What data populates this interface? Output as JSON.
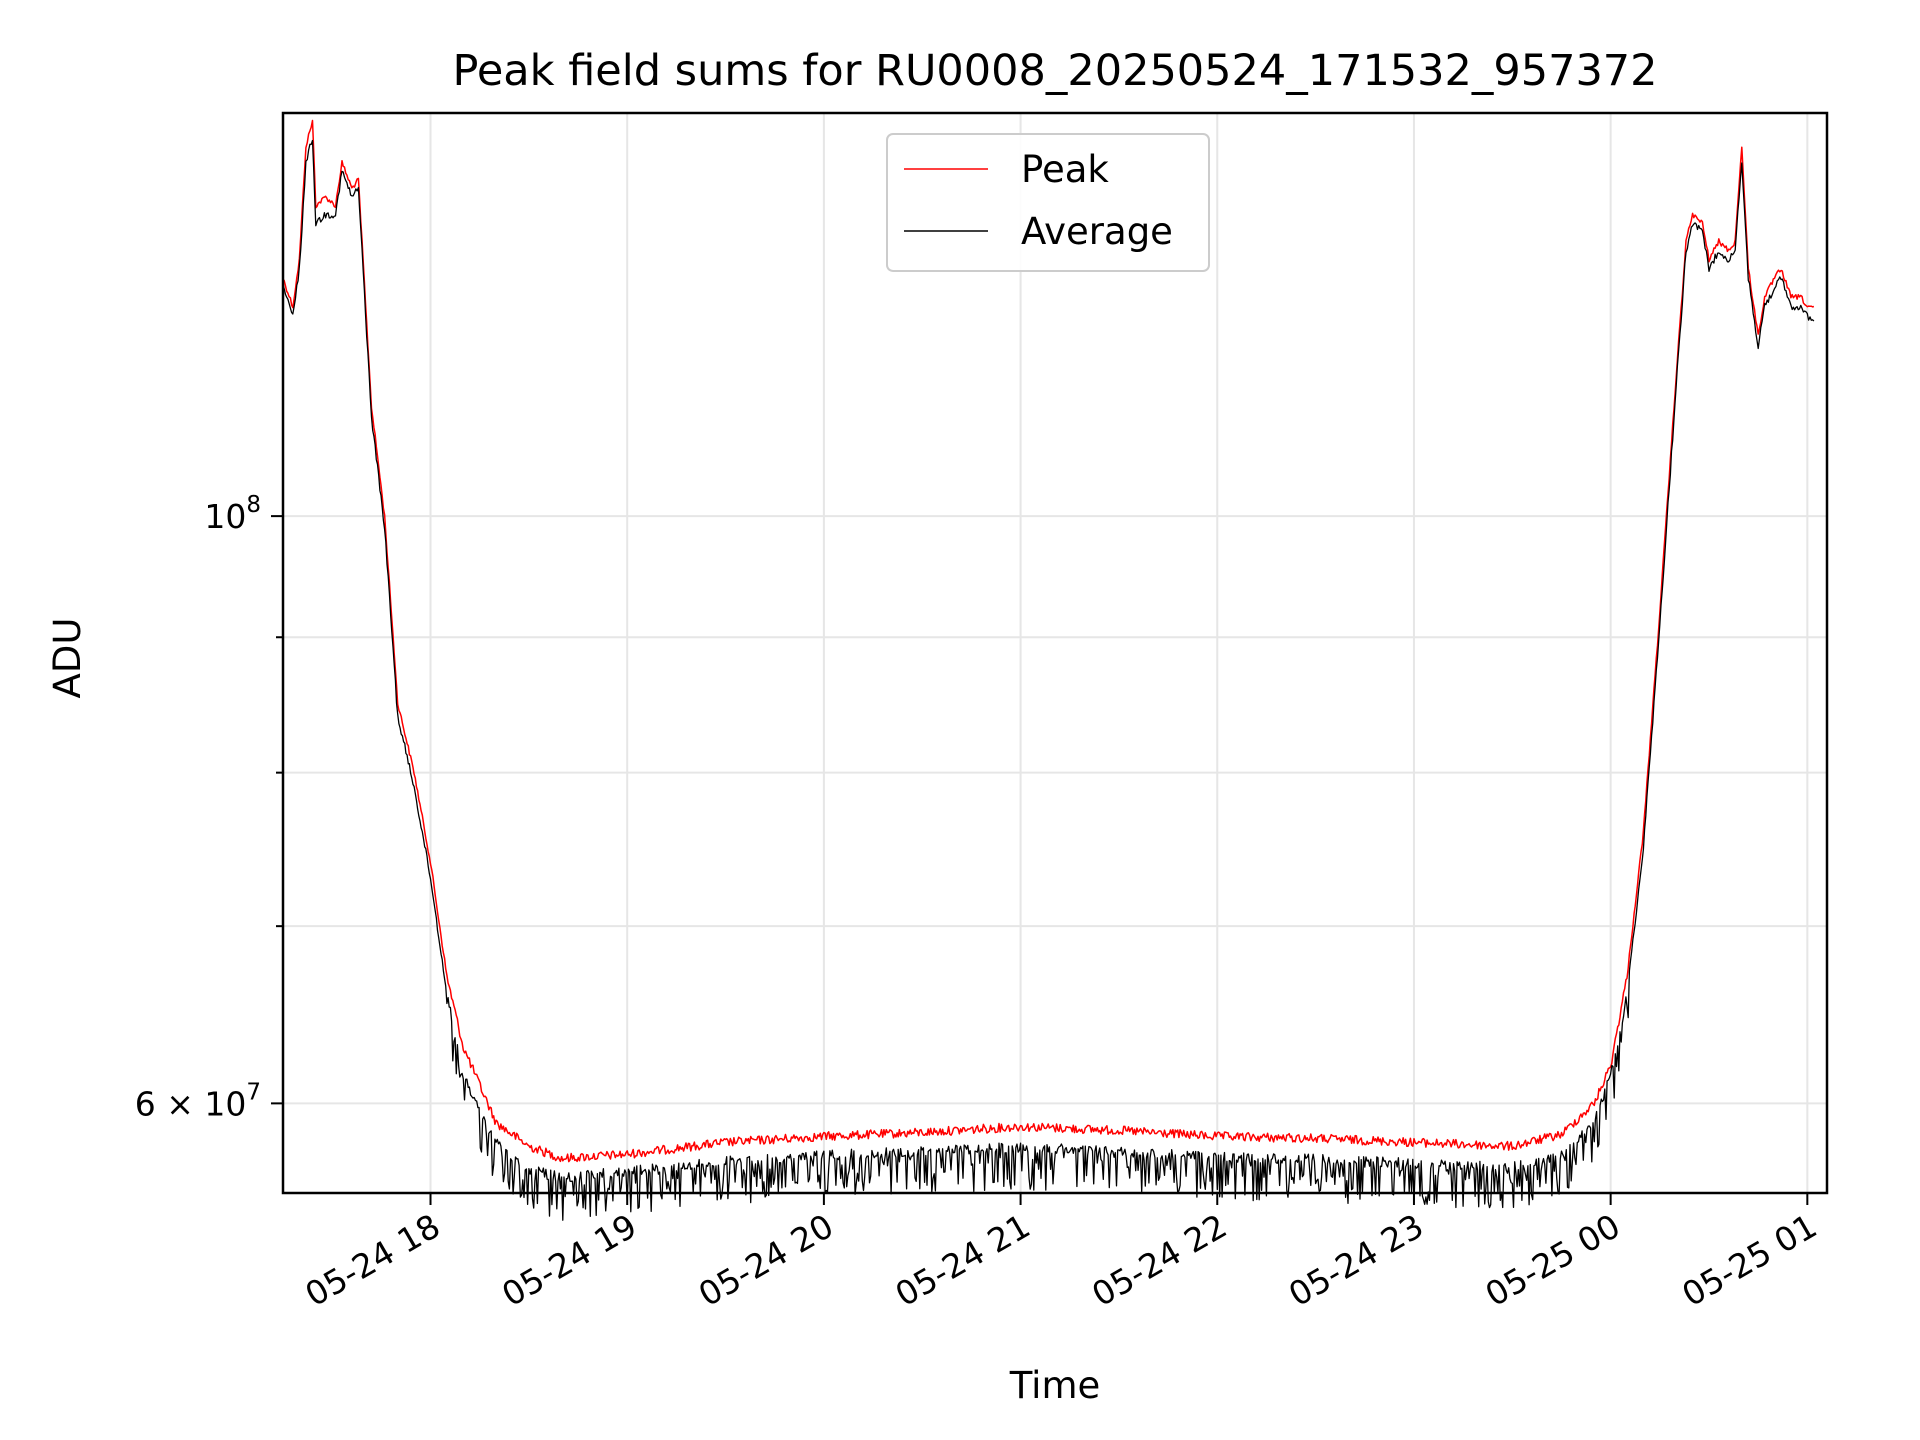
{
  "chart_data": {
    "type": "line",
    "title": "Peak field sums for RU0008_20250524_171532_957372",
    "xlabel": "Time",
    "ylabel": "ADU",
    "y_scale": "log",
    "ylim": [
      55500000,
      142000000
    ],
    "xlim": [
      "2025-05-24 17:15",
      "2025-05-25 01:06"
    ],
    "grid": true,
    "legend_position": "upper-center",
    "x_tick_labels": [
      {
        "t": "2025-05-24 18:00",
        "label": "05-24 18"
      },
      {
        "t": "2025-05-24 19:00",
        "label": "05-24 19"
      },
      {
        "t": "2025-05-24 20:00",
        "label": "05-24 20"
      },
      {
        "t": "2025-05-24 21:00",
        "label": "05-24 21"
      },
      {
        "t": "2025-05-24 22:00",
        "label": "05-24 22"
      },
      {
        "t": "2025-05-24 23:00",
        "label": "05-24 23"
      },
      {
        "t": "2025-05-25 00:00",
        "label": "05-25 00"
      },
      {
        "t": "2025-05-25 01:00",
        "label": "05-25 01"
      }
    ],
    "y_major_ticks": [
      {
        "v": 100000000,
        "base": "10",
        "exp": "8"
      },
      {
        "v": 60000000,
        "mantissa": "6 × 10",
        "exp": "7"
      }
    ],
    "y_minor_ticks": [
      70000000,
      80000000,
      90000000
    ],
    "series": [
      {
        "name": "Peak",
        "color": "#ff0000",
        "points": [
          [
            "2025-05-24 17:15",
            123000000
          ],
          [
            "2025-05-24 17:18",
            120000000
          ],
          [
            "2025-05-24 17:20",
            125000000
          ],
          [
            "2025-05-24 17:22",
            138000000
          ],
          [
            "2025-05-24 17:24",
            141000000
          ],
          [
            "2025-05-24 17:25",
            131000000
          ],
          [
            "2025-05-24 17:28",
            132000000
          ],
          [
            "2025-05-24 17:31",
            131000000
          ],
          [
            "2025-05-24 17:33",
            136000000
          ],
          [
            "2025-05-24 17:36",
            133000000
          ],
          [
            "2025-05-24 17:38",
            134000000
          ],
          [
            "2025-05-24 17:42",
            110000000
          ],
          [
            "2025-05-24 17:46",
            100000000
          ],
          [
            "2025-05-24 17:50",
            85000000
          ],
          [
            "2025-05-24 17:55",
            80000000
          ],
          [
            "2025-05-24 18:00",
            74000000
          ],
          [
            "2025-05-24 18:05",
            67000000
          ],
          [
            "2025-05-24 18:10",
            63000000
          ],
          [
            "2025-05-24 18:20",
            59000000
          ],
          [
            "2025-05-24 18:30",
            57800000
          ],
          [
            "2025-05-24 18:40",
            57200000
          ],
          [
            "2025-05-24 19:00",
            57400000
          ],
          [
            "2025-05-24 19:30",
            58000000
          ],
          [
            "2025-05-24 20:00",
            58300000
          ],
          [
            "2025-05-24 20:30",
            58500000
          ],
          [
            "2025-05-24 21:00",
            58800000
          ],
          [
            "2025-05-24 21:30",
            58600000
          ],
          [
            "2025-05-24 22:00",
            58300000
          ],
          [
            "2025-05-24 22:30",
            58200000
          ],
          [
            "2025-05-24 23:00",
            58000000
          ],
          [
            "2025-05-24 23:30",
            57800000
          ],
          [
            "2025-05-24 23:45",
            58400000
          ],
          [
            "2025-05-24 23:55",
            60000000
          ],
          [
            "2025-05-25 00:00",
            62000000
          ],
          [
            "2025-05-25 00:05",
            67000000
          ],
          [
            "2025-05-25 00:10",
            76000000
          ],
          [
            "2025-05-25 00:15",
            92000000
          ],
          [
            "2025-05-25 00:20",
            113000000
          ],
          [
            "2025-05-25 00:23",
            127000000
          ],
          [
            "2025-05-25 00:25",
            130000000
          ],
          [
            "2025-05-25 00:28",
            129000000
          ],
          [
            "2025-05-25 00:30",
            125000000
          ],
          [
            "2025-05-25 00:33",
            127000000
          ],
          [
            "2025-05-25 00:36",
            126000000
          ],
          [
            "2025-05-25 00:38",
            127000000
          ],
          [
            "2025-05-25 00:40",
            138000000
          ],
          [
            "2025-05-25 00:42",
            124000000
          ],
          [
            "2025-05-25 00:45",
            117000000
          ],
          [
            "2025-05-25 00:47",
            121000000
          ],
          [
            "2025-05-25 00:50",
            123000000
          ],
          [
            "2025-05-25 00:52",
            124000000
          ],
          [
            "2025-05-25 00:55",
            121000000
          ],
          [
            "2025-05-25 00:58",
            121000000
          ],
          [
            "2025-05-25 01:00",
            120000000
          ],
          [
            "2025-05-25 01:02",
            120000000
          ]
        ]
      },
      {
        "name": "Average",
        "color": "#000000",
        "points": [
          [
            "2025-05-24 17:15",
            122000000
          ],
          [
            "2025-05-24 17:18",
            119000000
          ],
          [
            "2025-05-24 17:20",
            124000000
          ],
          [
            "2025-05-24 17:22",
            136000000
          ],
          [
            "2025-05-24 17:24",
            139000000
          ],
          [
            "2025-05-24 17:25",
            129000000
          ],
          [
            "2025-05-24 17:28",
            130000000
          ],
          [
            "2025-05-24 17:31",
            130000000
          ],
          [
            "2025-05-24 17:33",
            135000000
          ],
          [
            "2025-05-24 17:36",
            132000000
          ],
          [
            "2025-05-24 17:38",
            133000000
          ],
          [
            "2025-05-24 17:42",
            109000000
          ],
          [
            "2025-05-24 17:46",
            99000000
          ],
          [
            "2025-05-24 17:50",
            84000000
          ],
          [
            "2025-05-24 17:55",
            79000000
          ],
          [
            "2025-05-24 18:00",
            73000000
          ],
          [
            "2025-05-24 18:05",
            66000000
          ],
          [
            "2025-05-24 18:10",
            61500000
          ],
          [
            "2025-05-24 18:20",
            58000000
          ],
          [
            "2025-05-24 18:30",
            56700000
          ],
          [
            "2025-05-24 18:40",
            56300000
          ],
          [
            "2025-05-24 19:00",
            56600000
          ],
          [
            "2025-05-24 19:30",
            57100000
          ],
          [
            "2025-05-24 20:00",
            57400000
          ],
          [
            "2025-05-24 20:30",
            57600000
          ],
          [
            "2025-05-24 21:00",
            57800000
          ],
          [
            "2025-05-24 21:30",
            57600000
          ],
          [
            "2025-05-24 22:00",
            57300000
          ],
          [
            "2025-05-24 22:30",
            57200000
          ],
          [
            "2025-05-24 23:00",
            57000000
          ],
          [
            "2025-05-24 23:30",
            56800000
          ],
          [
            "2025-05-24 23:45",
            57400000
          ],
          [
            "2025-05-24 23:55",
            59200000
          ],
          [
            "2025-05-25 00:00",
            61500000
          ],
          [
            "2025-05-25 00:05",
            66000000
          ],
          [
            "2025-05-25 00:10",
            75000000
          ],
          [
            "2025-05-25 00:15",
            91000000
          ],
          [
            "2025-05-25 00:20",
            112000000
          ],
          [
            "2025-05-25 00:23",
            126000000
          ],
          [
            "2025-05-25 00:25",
            129000000
          ],
          [
            "2025-05-25 00:28",
            128000000
          ],
          [
            "2025-05-25 00:30",
            124000000
          ],
          [
            "2025-05-25 00:33",
            126000000
          ],
          [
            "2025-05-25 00:36",
            125000000
          ],
          [
            "2025-05-25 00:38",
            126000000
          ],
          [
            "2025-05-25 00:40",
            136000000
          ],
          [
            "2025-05-25 00:42",
            123000000
          ],
          [
            "2025-05-25 00:45",
            116000000
          ],
          [
            "2025-05-25 00:47",
            120000000
          ],
          [
            "2025-05-25 00:50",
            122000000
          ],
          [
            "2025-05-25 00:52",
            123000000
          ],
          [
            "2025-05-25 00:55",
            120000000
          ],
          [
            "2025-05-25 00:58",
            120000000
          ],
          [
            "2025-05-25 01:00",
            119000000
          ],
          [
            "2025-05-25 01:02",
            118500000
          ]
        ]
      }
    ]
  }
}
